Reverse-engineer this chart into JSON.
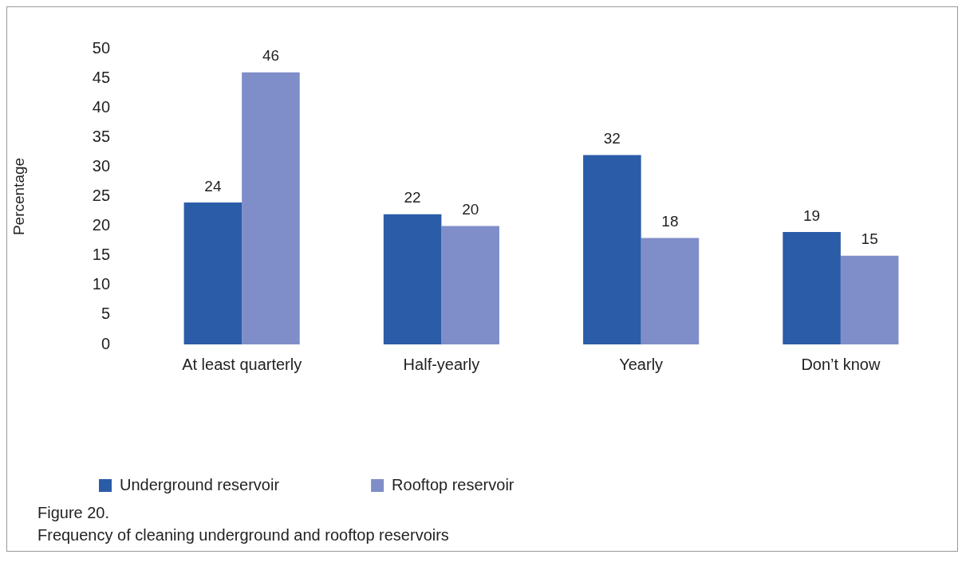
{
  "chart_data": {
    "type": "bar",
    "ylabel": "Percentage",
    "categories": [
      "At least quarterly",
      "Half-yearly",
      "Yearly",
      "Don’t know"
    ],
    "series": [
      {
        "name": "Underground reservoir",
        "color": "#2b5ca8",
        "values": [
          24,
          22,
          32,
          19
        ]
      },
      {
        "name": "Rooftop reservoir",
        "color": "#7f8ec8",
        "values": [
          46,
          20,
          18,
          15
        ]
      }
    ],
    "ylim": [
      0,
      50
    ],
    "yticks": [
      0,
      5,
      10,
      15,
      20,
      25,
      30,
      35,
      40,
      45,
      50
    ],
    "grid": false,
    "legend": "bottom left",
    "data_labels": true,
    "annotations": [
      "Figure 20.",
      "Frequency of cleaning underground and rooftop reservoirs"
    ]
  }
}
